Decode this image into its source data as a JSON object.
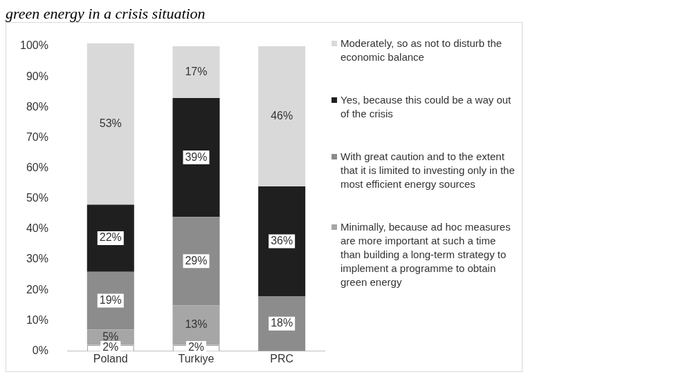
{
  "chart_data": {
    "type": "bar",
    "title": "green energy in a crisis situation",
    "categories": [
      "Poland",
      "Turkiye",
      "PRC"
    ],
    "stacked": true,
    "legend": "right",
    "grid": false,
    "ylim": [
      0,
      101
    ],
    "yticks": [
      {
        "value": 0,
        "label": "0%"
      },
      {
        "value": 10,
        "label": "10%"
      },
      {
        "value": 20,
        "label": "20%"
      },
      {
        "value": 30,
        "label": "30%"
      },
      {
        "value": 40,
        "label": "40%"
      },
      {
        "value": 50,
        "label": "50%"
      },
      {
        "value": 60,
        "label": "60%"
      },
      {
        "value": 70,
        "label": "70%"
      },
      {
        "value": 80,
        "label": "80%"
      },
      {
        "value": 90,
        "label": "90%"
      },
      {
        "value": 100,
        "label": "100%"
      }
    ],
    "series": [
      {
        "color": "#ffffff",
        "values": [
          2,
          2,
          null
        ],
        "value_labels": [
          "2%",
          "2%",
          null
        ]
      },
      {
        "name": "Minimally, because ad hoc measures are more important at such a time than building a long-term strategy to implement a programme to obtain green energy",
        "color": "#a6a6a6",
        "values": [
          5,
          13,
          null
        ],
        "value_labels": [
          "5%",
          "13%",
          null
        ]
      },
      {
        "name": "With great caution and to the extent that it is limited to investing only in the most efficient energy sources",
        "color": "#8c8c8c",
        "values": [
          19,
          29,
          18
        ],
        "value_labels": [
          "19%",
          "29%",
          "18%"
        ]
      },
      {
        "name": "Yes, because this could be a way out of the crisis",
        "color": "#1f1f1f",
        "values": [
          22,
          39,
          36
        ],
        "value_labels": [
          "22%",
          "39%",
          "36%"
        ]
      },
      {
        "name": "Moderately, so as not to disturb the economic balance",
        "color": "#d9d9d9",
        "values": [
          53,
          17,
          46
        ],
        "value_labels": [
          "53%",
          "17%",
          "46%"
        ]
      }
    ]
  }
}
